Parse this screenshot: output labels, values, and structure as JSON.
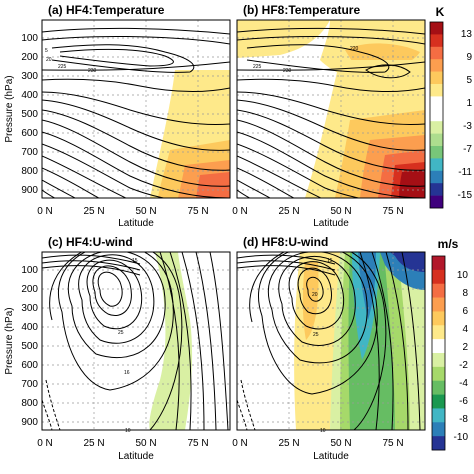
{
  "chart_data": [
    {
      "type": "heatmap",
      "title": "(a) HF4:Temperature",
      "xlabel": "Latitude",
      "ylabel": "Pressure (hPa)",
      "x_ticks": [
        "0 N",
        "25 N",
        "50 N",
        "75 N"
      ],
      "y_ticks": [
        "100",
        "200",
        "300",
        "400",
        "500",
        "600",
        "700",
        "800",
        "900"
      ],
      "xlim": [
        0,
        90
      ],
      "ylim": [
        1000,
        0
      ],
      "contour_field": "temperature (K)",
      "contour_labels": [
        "5",
        "20",
        "225",
        "230"
      ],
      "shaded_anomaly_summary": "warming 1-5 K poleward of ~45N below 300 hPa, 5-9 K near surface at 70-90N"
    },
    {
      "type": "heatmap",
      "title": "(b) HF8:Temperature",
      "xlabel": "Latitude",
      "ylabel": "",
      "x_ticks": [
        "0 N",
        "25 N",
        "50 N",
        "75 N"
      ],
      "y_ticks": [
        "100",
        "200",
        "300",
        "400",
        "500",
        "600",
        "700",
        "800",
        "900"
      ],
      "xlim": [
        0,
        90
      ],
      "ylim": [
        1000,
        0
      ],
      "contour_field": "temperature (K)",
      "contour_labels": [
        "225",
        "230",
        "220"
      ],
      "shaded_anomaly_summary": "warming 1-5 K poleward of ~40N, up to 13 K near surface at 70-85N, 1-5 K in upper troposphere"
    },
    {
      "type": "heatmap",
      "title": "(c) HF4:U-wind",
      "xlabel": "Latitude",
      "ylabel": "Pressure (hPa)",
      "x_ticks": [
        "0 N",
        "25 N",
        "50 N",
        "75 N"
      ],
      "y_ticks": [
        "100",
        "200",
        "300",
        "400",
        "500",
        "600",
        "700",
        "800",
        "900"
      ],
      "xlim": [
        0,
        90
      ],
      "ylim": [
        1000,
        0
      ],
      "contour_field": "zonal wind (m/s)",
      "contour_labels": [
        "15",
        "25",
        "10",
        "16"
      ],
      "shaded_anomaly_summary": "weakening -2 to -4 m/s in a band at 45-70N"
    },
    {
      "type": "heatmap",
      "title": "(d) HF8:U-wind",
      "xlabel": "Latitude",
      "ylabel": "",
      "x_ticks": [
        "0 N",
        "25 N",
        "50 N",
        "75 N"
      ],
      "y_ticks": [
        "100",
        "200",
        "300",
        "400",
        "500",
        "600",
        "700",
        "800",
        "900"
      ],
      "xlim": [
        0,
        90
      ],
      "ylim": [
        1000,
        0
      ],
      "contour_field": "zonal wind (m/s)",
      "contour_labels": [
        "15",
        "20",
        "25",
        "10"
      ],
      "shaded_anomaly_summary": "strengthening 2-6 m/s at 30-45N, weakening down to -10 m/s at 50-70N"
    }
  ],
  "colorbars": [
    {
      "unit": "K",
      "labels": [
        "13",
        "9",
        "5",
        "1",
        "-3",
        "-7",
        "-11",
        "-15"
      ],
      "colors": [
        "#a50f15",
        "#d7301f",
        "#f46d43",
        "#fc9e4f",
        "#fdc95d",
        "#fee98a",
        "#ffffff",
        "#ffffff",
        "#d9f0a3",
        "#addd8e",
        "#78c679",
        "#41b6c4",
        "#2c7fb8",
        "#253494",
        "#3f007d"
      ]
    },
    {
      "unit": "m/s",
      "labels": [
        "10",
        "8",
        "6",
        "4",
        "2",
        "-2",
        "-4",
        "-6",
        "-8",
        "-10"
      ],
      "colors": [
        "#b2182b",
        "#d6301f",
        "#f46d43",
        "#fc9e4f",
        "#fdc95d",
        "#fee98a",
        "#ffffff",
        "#d9f0a3",
        "#a6d96a",
        "#66bd63",
        "#1a9850",
        "#41b6c4",
        "#2c7fb8",
        "#253494"
      ]
    }
  ]
}
